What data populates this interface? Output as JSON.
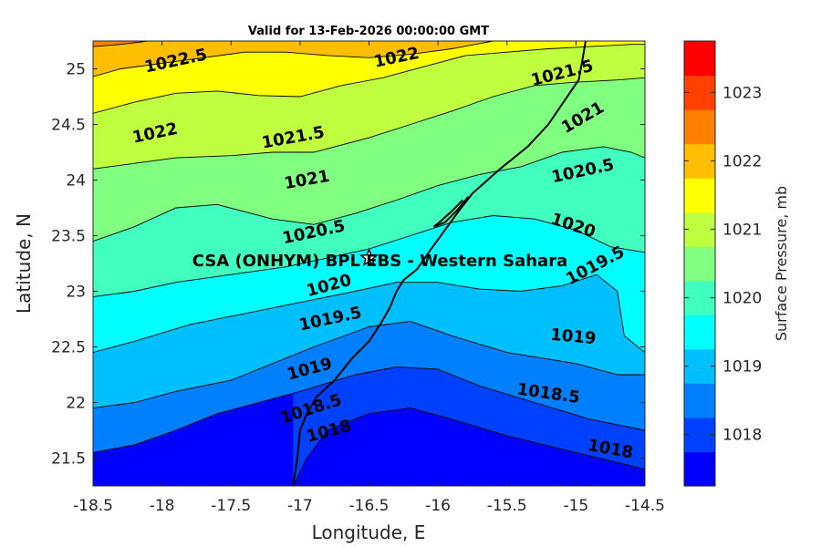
{
  "chart_data": {
    "type": "filled-contour-map",
    "title": "Valid for 13-Feb-2026 00:00:00 GMT",
    "xlabel": "Longitude, E",
    "ylabel": "Latitude, N",
    "xlim": [
      -18.5,
      -14.5
    ],
    "ylim": [
      21.25,
      25.25
    ],
    "xticks": [
      "-18.5",
      "-18",
      "-17.5",
      "-17",
      "-16.5",
      "-16",
      "-15.5",
      "-15",
      "-14.5"
    ],
    "yticks": [
      "21.5",
      "22",
      "22.5",
      "23",
      "23.5",
      "24",
      "24.5",
      "25"
    ],
    "colorbar": {
      "label": "Surface Pressure, mb",
      "ticks": [
        "1018",
        "1019",
        "1020",
        "1021",
        "1022",
        "1023"
      ],
      "levels": [
        {
          "min": 1017.5,
          "max": 1018.0,
          "color": "#0000ff"
        },
        {
          "min": 1018.0,
          "max": 1018.5,
          "color": "#0040ff"
        },
        {
          "min": 1018.5,
          "max": 1019.0,
          "color": "#0080ff"
        },
        {
          "min": 1019.0,
          "max": 1019.5,
          "color": "#00bfff"
        },
        {
          "min": 1019.5,
          "max": 1020.0,
          "color": "#00ffff"
        },
        {
          "min": 1020.0,
          "max": 1020.5,
          "color": "#40ffbf"
        },
        {
          "min": 1020.5,
          "max": 1021.0,
          "color": "#80ff80"
        },
        {
          "min": 1021.0,
          "max": 1021.5,
          "color": "#bfff40"
        },
        {
          "min": 1021.5,
          "max": 1022.0,
          "color": "#ffff00"
        },
        {
          "min": 1022.0,
          "max": 1022.5,
          "color": "#ffbf00"
        },
        {
          "min": 1022.5,
          "max": 1023.0,
          "color": "#ff8000"
        },
        {
          "min": 1023.0,
          "max": 1023.5,
          "color": "#ff4000"
        },
        {
          "min": 1023.5,
          "max": 1024.0,
          "color": "#ff0000"
        }
      ]
    },
    "contours": [
      {
        "level": 1018.0,
        "label": "1018",
        "points": [
          [
            -17.05,
            21.25
          ],
          [
            -16.95,
            21.5
          ],
          [
            -16.8,
            21.75
          ],
          [
            -16.5,
            21.9
          ],
          [
            -16.2,
            21.95
          ],
          [
            -15.9,
            21.85
          ],
          [
            -15.5,
            21.7
          ],
          [
            -15.0,
            21.55
          ],
          [
            -14.5,
            21.4
          ]
        ]
      },
      {
        "level": 1018.5,
        "label": "1018.5",
        "points": [
          [
            -18.5,
            21.55
          ],
          [
            -18.2,
            21.62
          ],
          [
            -17.9,
            21.75
          ],
          [
            -17.6,
            21.9
          ],
          [
            -17.3,
            22.0
          ],
          [
            -17.0,
            22.1
          ],
          [
            -16.6,
            22.25
          ],
          [
            -16.3,
            22.32
          ],
          [
            -16.0,
            22.3
          ],
          [
            -15.7,
            22.15
          ],
          [
            -15.3,
            22.0
          ],
          [
            -14.9,
            21.85
          ],
          [
            -14.5,
            21.75
          ]
        ]
      },
      {
        "level": 1019.0,
        "label": "1019",
        "points": [
          [
            -18.5,
            21.95
          ],
          [
            -18.2,
            22.0
          ],
          [
            -17.9,
            22.1
          ],
          [
            -17.5,
            22.2
          ],
          [
            -17.2,
            22.35
          ],
          [
            -16.9,
            22.5
          ],
          [
            -16.5,
            22.68
          ],
          [
            -16.2,
            22.73
          ],
          [
            -15.9,
            22.6
          ],
          [
            -15.5,
            22.45
          ],
          [
            -15.0,
            22.35
          ],
          [
            -14.7,
            22.25
          ],
          [
            -14.5,
            22.25
          ]
        ]
      },
      {
        "level": 1019.5,
        "label": "1019.5",
        "points": [
          [
            -18.5,
            22.45
          ],
          [
            -18.2,
            22.55
          ],
          [
            -17.8,
            22.7
          ],
          [
            -17.4,
            22.8
          ],
          [
            -17.0,
            22.9
          ],
          [
            -16.6,
            23.0
          ],
          [
            -16.3,
            23.08
          ],
          [
            -16.0,
            23.08
          ],
          [
            -15.7,
            23.02
          ],
          [
            -15.4,
            23.0
          ],
          [
            -15.1,
            23.05
          ],
          [
            -14.85,
            23.15
          ],
          [
            -14.7,
            23.0
          ],
          [
            -14.65,
            22.6
          ],
          [
            -14.5,
            22.45
          ]
        ]
      },
      {
        "level": 1020.0,
        "label": "1020",
        "points": [
          [
            -18.5,
            22.95
          ],
          [
            -18.2,
            23.0
          ],
          [
            -17.9,
            23.08
          ],
          [
            -17.5,
            23.15
          ],
          [
            -17.1,
            23.22
          ],
          [
            -16.8,
            23.3
          ],
          [
            -16.5,
            23.38
          ],
          [
            -16.2,
            23.5
          ],
          [
            -15.9,
            23.62
          ],
          [
            -15.6,
            23.68
          ],
          [
            -15.3,
            23.65
          ],
          [
            -15.0,
            23.55
          ],
          [
            -14.75,
            23.4
          ],
          [
            -14.5,
            23.35
          ]
        ]
      },
      {
        "level": 1020.5,
        "label": "1020.5",
        "points": [
          [
            -18.5,
            23.45
          ],
          [
            -18.2,
            23.58
          ],
          [
            -17.9,
            23.75
          ],
          [
            -17.6,
            23.78
          ],
          [
            -17.2,
            23.65
          ],
          [
            -16.9,
            23.6
          ],
          [
            -16.6,
            23.7
          ],
          [
            -16.3,
            23.82
          ],
          [
            -16.0,
            23.95
          ],
          [
            -15.7,
            24.05
          ],
          [
            -15.4,
            24.12
          ],
          [
            -15.1,
            24.25
          ],
          [
            -14.8,
            24.3
          ],
          [
            -14.6,
            24.25
          ],
          [
            -14.5,
            24.2
          ]
        ]
      },
      {
        "level": 1021.0,
        "label": "1021",
        "points": [
          [
            -18.5,
            24.1
          ],
          [
            -18.2,
            24.15
          ],
          [
            -17.9,
            24.2
          ],
          [
            -17.5,
            24.22
          ],
          [
            -17.2,
            24.25
          ],
          [
            -16.9,
            24.25
          ],
          [
            -16.5,
            24.38
          ],
          [
            -16.2,
            24.5
          ],
          [
            -15.9,
            24.62
          ],
          [
            -15.6,
            24.75
          ],
          [
            -15.3,
            24.85
          ],
          [
            -15.0,
            24.88
          ],
          [
            -14.7,
            24.9
          ],
          [
            -14.5,
            24.92
          ]
        ]
      },
      {
        "level": 1021.5,
        "label": "1021.5",
        "points": [
          [
            -18.5,
            24.6
          ],
          [
            -18.2,
            24.7
          ],
          [
            -17.9,
            24.78
          ],
          [
            -17.6,
            24.8
          ],
          [
            -17.3,
            24.76
          ],
          [
            -17.0,
            24.75
          ],
          [
            -16.7,
            24.85
          ],
          [
            -16.4,
            24.92
          ],
          [
            -16.1,
            25.02
          ],
          [
            -15.8,
            25.12
          ],
          [
            -15.5,
            25.15
          ],
          [
            -15.2,
            25.18
          ],
          [
            -14.9,
            25.2
          ],
          [
            -14.6,
            25.22
          ],
          [
            -14.5,
            25.22
          ]
        ]
      },
      {
        "level": 1022.0,
        "label": "1022",
        "points": [
          [
            -18.5,
            24.93
          ],
          [
            -18.3,
            25.0
          ],
          [
            -18.0,
            25.05
          ],
          [
            -17.7,
            25.1
          ],
          [
            -17.4,
            25.15
          ],
          [
            -17.1,
            25.15
          ],
          [
            -16.8,
            25.12
          ],
          [
            -16.5,
            25.1
          ],
          [
            -16.2,
            25.13
          ],
          [
            -15.9,
            25.18
          ],
          [
            -15.6,
            25.25
          ]
        ]
      },
      {
        "level": 1022.5,
        "label": "1022.5",
        "points": [
          [
            -18.5,
            25.2
          ],
          [
            -18.3,
            25.22
          ],
          [
            -18.1,
            25.25
          ]
        ]
      }
    ],
    "contour_labels": [
      {
        "text": "1022.5",
        "lon": -17.9,
        "lat": 25.07,
        "angle": -12
      },
      {
        "text": "1022",
        "lon": -16.3,
        "lat": 25.1,
        "angle": -12
      },
      {
        "text": "1021.5",
        "lon": -15.1,
        "lat": 24.96,
        "angle": -14
      },
      {
        "text": "1022",
        "lon": -18.05,
        "lat": 24.42,
        "angle": -12
      },
      {
        "text": "1021.5",
        "lon": -17.05,
        "lat": 24.38,
        "angle": -10
      },
      {
        "text": "1021",
        "lon": -14.95,
        "lat": 24.56,
        "angle": -30
      },
      {
        "text": "1021",
        "lon": -16.95,
        "lat": 24.0,
        "angle": -10
      },
      {
        "text": "1020.5",
        "lon": -14.95,
        "lat": 24.08,
        "angle": -12
      },
      {
        "text": "1020.5",
        "lon": -16.9,
        "lat": 23.53,
        "angle": -12
      },
      {
        "text": "1020",
        "lon": -15.02,
        "lat": 23.59,
        "angle": 18
      },
      {
        "text": "1020",
        "lon": -16.79,
        "lat": 23.05,
        "angle": -15
      },
      {
        "text": "1019.5",
        "lon": -14.86,
        "lat": 23.23,
        "angle": -28
      },
      {
        "text": "1019.5",
        "lon": -16.78,
        "lat": 22.75,
        "angle": -12
      },
      {
        "text": "1019",
        "lon": -15.02,
        "lat": 22.59,
        "angle": 5
      },
      {
        "text": "1019",
        "lon": -16.93,
        "lat": 22.3,
        "angle": -15
      },
      {
        "text": "1018.5",
        "lon": -16.92,
        "lat": 21.94,
        "angle": -18
      },
      {
        "text": "1018.5",
        "lon": -15.2,
        "lat": 22.08,
        "angle": 8
      },
      {
        "text": "1018",
        "lon": -16.79,
        "lat": 21.74,
        "angle": -15
      },
      {
        "text": "1018",
        "lon": -14.75,
        "lat": 21.58,
        "angle": 10
      }
    ],
    "coastline": [
      [
        -17.05,
        21.25
      ],
      [
        -17.02,
        21.5
      ],
      [
        -17.0,
        21.75
      ],
      [
        -16.95,
        21.9
      ],
      [
        -16.88,
        22.05
      ],
      [
        -16.75,
        22.2
      ],
      [
        -16.62,
        22.4
      ],
      [
        -16.5,
        22.55
      ],
      [
        -16.42,
        22.7
      ],
      [
        -16.35,
        22.85
      ],
      [
        -16.3,
        23.0
      ],
      [
        -16.25,
        23.1
      ],
      [
        -16.15,
        23.2
      ],
      [
        -16.05,
        23.38
      ],
      [
        -15.95,
        23.55
      ],
      [
        -15.85,
        23.72
      ],
      [
        -15.75,
        23.88
      ],
      [
        -15.55,
        24.1
      ],
      [
        -15.35,
        24.3
      ],
      [
        -15.2,
        24.5
      ],
      [
        -15.08,
        24.72
      ],
      [
        -14.98,
        24.9
      ],
      [
        -14.95,
        25.1
      ],
      [
        -14.93,
        25.25
      ]
    ],
    "peninsula": [
      [
        -15.82,
        23.82
      ],
      [
        -15.9,
        23.72
      ],
      [
        -15.98,
        23.63
      ],
      [
        -16.03,
        23.58
      ],
      [
        -15.95,
        23.62
      ],
      [
        -15.86,
        23.73
      ],
      [
        -15.78,
        23.85
      ]
    ],
    "site": {
      "name": "CSA (ONHYM) BPL EBS - Western Sahara",
      "lon": -16.5,
      "lat": 23.3
    }
  }
}
